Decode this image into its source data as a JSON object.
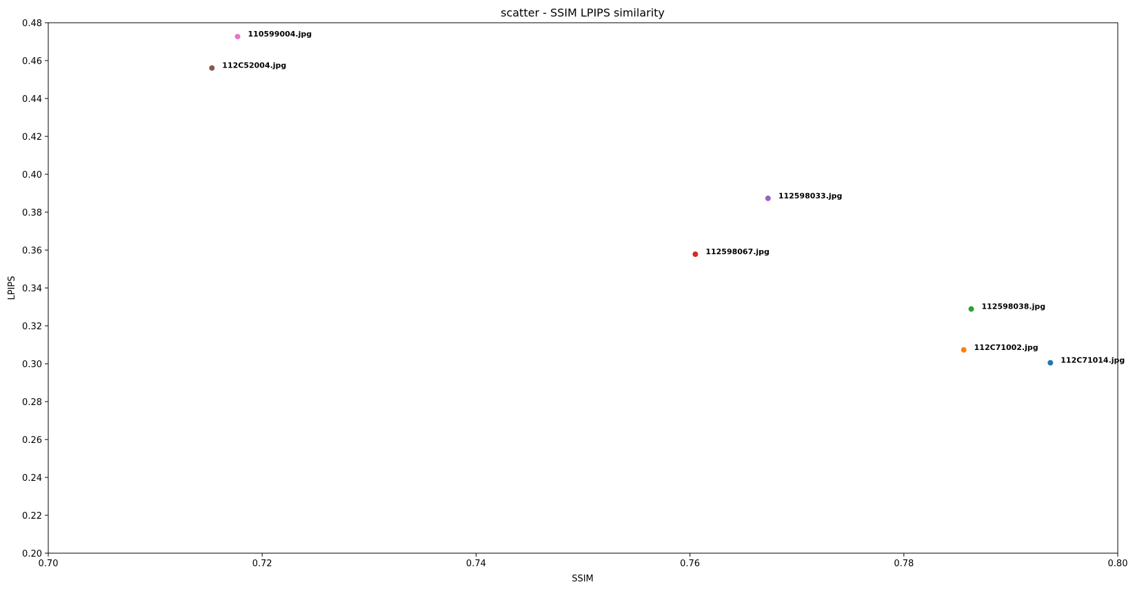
{
  "chart_data": {
    "type": "scatter",
    "title": "scatter - SSIM LPIPS similarity",
    "xlabel": "SSIM",
    "ylabel": "LPIPS",
    "xlim": [
      0.7,
      0.8
    ],
    "ylim": [
      0.2,
      0.48
    ],
    "xticks": [
      "0.70",
      "0.72",
      "0.74",
      "0.76",
      "0.78",
      "0.80"
    ],
    "yticks": [
      "0.20",
      "0.22",
      "0.24",
      "0.26",
      "0.28",
      "0.30",
      "0.32",
      "0.34",
      "0.36",
      "0.38",
      "0.40",
      "0.42",
      "0.44",
      "0.46",
      "0.48"
    ],
    "grid": false,
    "points": [
      {
        "label": "112C71014.jpg",
        "x": 0.7937,
        "y": 0.3005,
        "color": "#1f77b4"
      },
      {
        "label": "112C71002.jpg",
        "x": 0.7856,
        "y": 0.3073,
        "color": "#ff7f0e"
      },
      {
        "label": "112598038.jpg",
        "x": 0.7863,
        "y": 0.3289,
        "color": "#2ca02c"
      },
      {
        "label": "112598067.jpg",
        "x": 0.7605,
        "y": 0.3578,
        "color": "#d62728"
      },
      {
        "label": "112598033.jpg",
        "x": 0.7673,
        "y": 0.3873,
        "color": "#9467bd"
      },
      {
        "label": "112C52004.jpg",
        "x": 0.7153,
        "y": 0.4561,
        "color": "#8c564b"
      },
      {
        "label": "110599004.jpg",
        "x": 0.7177,
        "y": 0.4727,
        "color": "#e377c2"
      }
    ]
  }
}
